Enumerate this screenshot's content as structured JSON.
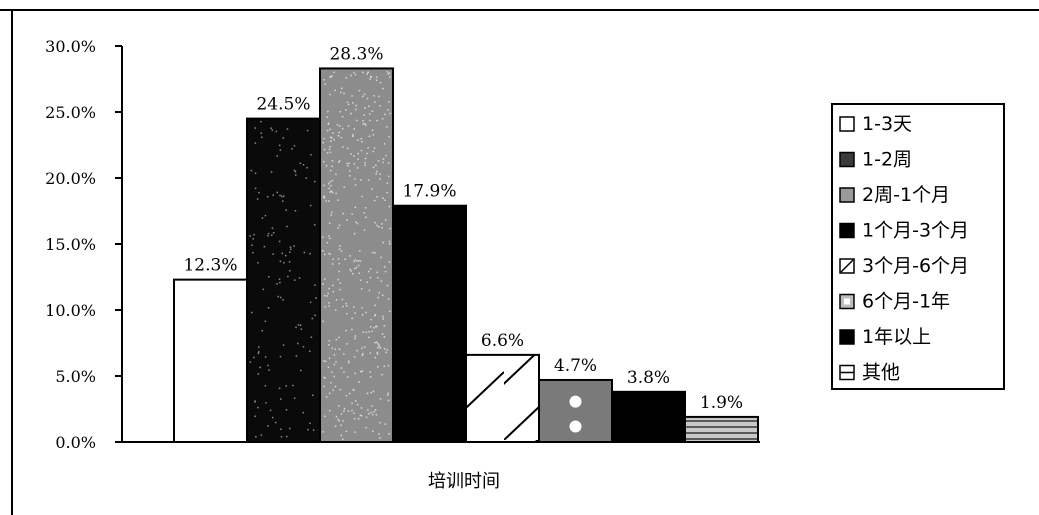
{
  "chart_data": {
    "type": "bar",
    "xlabel": "培训时间",
    "ylim": [
      0,
      30
    ],
    "ytick_values": [
      0,
      5,
      10,
      15,
      20,
      25,
      30
    ],
    "ytick_labels": [
      "0.0%",
      "5.0%",
      "10.0%",
      "15.0%",
      "20.0%",
      "25.0%",
      "30.0%"
    ],
    "legend_position": "right",
    "grid": false,
    "series": [
      {
        "name": "1-3天",
        "value": 12.3,
        "label": "12.3%",
        "fill": "#ffffff",
        "pattern": "none"
      },
      {
        "name": "1-2周",
        "value": 24.5,
        "label": "24.5%",
        "fill": "#0a0a0a",
        "pattern": "speckle-light"
      },
      {
        "name": "2周-1个月",
        "value": 28.3,
        "label": "28.3%",
        "fill": "#8c8c8c",
        "pattern": "speckle-dense"
      },
      {
        "name": "1个月-3个月",
        "value": 17.9,
        "label": "17.9%",
        "fill": "#000000",
        "pattern": "none"
      },
      {
        "name": "3个月-6个月",
        "value": 6.6,
        "label": "6.6%",
        "fill": "#ffffff",
        "pattern": "diagonal"
      },
      {
        "name": "6个月-1年",
        "value": 4.7,
        "label": "4.7%",
        "fill": "#7a7a7a",
        "pattern": "dots"
      },
      {
        "name": "1年以上",
        "value": 3.8,
        "label": "3.8%",
        "fill": "#000000",
        "pattern": "none"
      },
      {
        "name": "其他",
        "value": 1.9,
        "label": "1.9%",
        "fill": "#b4b4b4",
        "pattern": "stripes"
      }
    ]
  }
}
